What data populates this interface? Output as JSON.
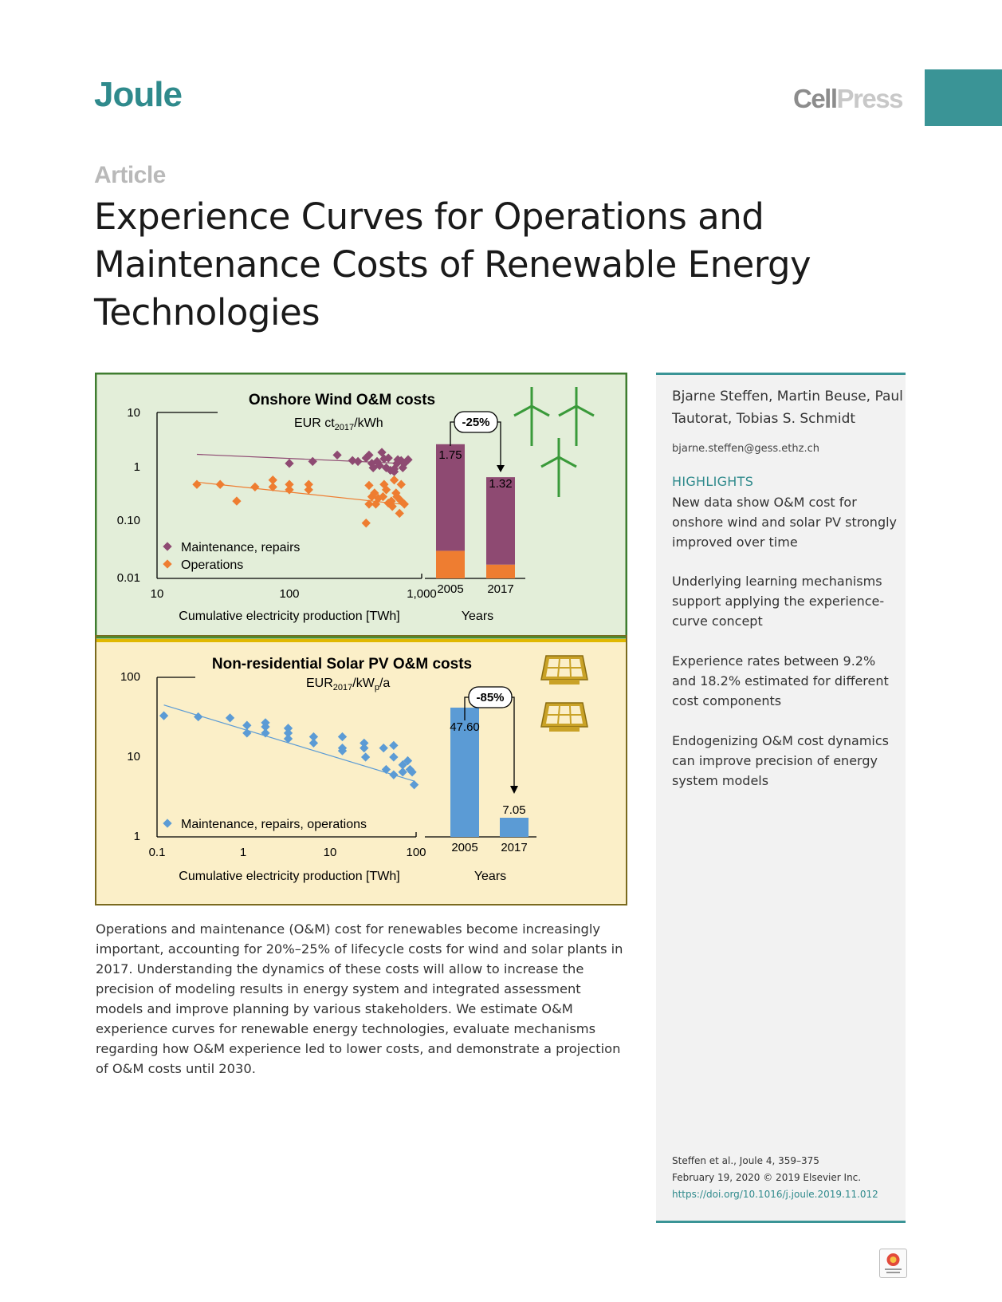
{
  "header": {
    "journal": "Joule",
    "publisher_part1": "Cell",
    "publisher_part2": "Press"
  },
  "article": {
    "type": "Article",
    "title": "Experience Curves for Operations and Maintenance Costs of Renewable Energy Technologies"
  },
  "sidebar": {
    "authors": "Bjarne Steffen, Martin Beuse, Paul Tautorat, Tobias S. Schmidt",
    "email": "bjarne.steffen@gess.ethz.ch",
    "highlights_heading": "HIGHLIGHTS",
    "highlights": [
      "New data show O&M cost for onshore wind and solar PV strongly improved over time",
      "Underlying learning mechanisms support applying the experience-curve concept",
      "Experience rates between 9.2% and 18.2% estimated for different cost components",
      "Endogenizing O&M cost dynamics can improve precision of energy system models"
    ],
    "citation_line1": "Steffen et al., Joule 4, 359–375",
    "citation_line2": "February 19, 2020 © 2019 Elsevier Inc.",
    "doi": "https://doi.org/10.1016/j.joule.2019.11.012"
  },
  "abstract": "Operations and maintenance (O&M) cost for renewables become increasingly important, accounting for 20%–25% of lifecycle costs for wind and solar plants in 2017. Understanding the dynamics of these costs will allow to increase the precision of modeling results in energy system and integrated assessment models and improve planning by various stakeholders. We estimate O&M experience curves for renewable energy technologies, evaluate mechanisms regarding how O&M experience led to lower costs, and demonstrate a projection of O&M costs until 2030.",
  "colors": {
    "accent": "#3a9496",
    "wind_panel_bg": "#e3eed9",
    "solar_panel_bg": "#fbefc8",
    "maintenance": "#8e4a72",
    "operations": "#ee7d31",
    "solar_series": "#5b9bd5",
    "solar_icon": "#c9a227",
    "wind_icon": "#3a9a3a"
  },
  "icons": {
    "wind": "wind-turbine-icon",
    "solar": "solar-panel-icon"
  },
  "chart_data": [
    {
      "type": "scatter",
      "title": "Onshore Wind O&M costs",
      "ylabel_main": "EUR ct",
      "ylabel_sub": "2017",
      "ylabel_tail": "/kWh",
      "xlabel": "Cumulative electricity production [TWh]",
      "x_scale": "log",
      "y_scale": "log",
      "xlim": [
        10,
        1000
      ],
      "ylim": [
        0.01,
        10
      ],
      "xticks": [
        "10",
        "100",
        "1,000"
      ],
      "yticks": [
        "10",
        "1",
        "0.10",
        "0.01"
      ],
      "legend_position": "bottom-left",
      "series": [
        {
          "name": "Maintenance, repairs",
          "color": "#8e4a72",
          "points": [
            [
              100,
              1.2
            ],
            [
              150,
              1.3
            ],
            [
              230,
              1.7
            ],
            [
              300,
              1.35
            ],
            [
              330,
              1.3
            ],
            [
              380,
              1.5
            ],
            [
              420,
              1.2
            ],
            [
              430,
              1.0
            ],
            [
              480,
              1.1
            ],
            [
              520,
              1.45
            ],
            [
              560,
              1.5
            ],
            [
              580,
              0.9
            ],
            [
              620,
              0.95
            ],
            [
              650,
              1.2
            ],
            [
              700,
              1.35
            ],
            [
              720,
              1.0
            ],
            [
              790,
              1.4
            ],
            [
              400,
              1.7
            ],
            [
              460,
              1.3
            ],
            [
              540,
              1.0
            ],
            [
              620,
              0.85
            ],
            [
              660,
              1.4
            ],
            [
              740,
              1.2
            ],
            [
              500,
              1.9
            ]
          ],
          "trend": [
            [
              20,
              1.75
            ],
            [
              700,
              1.2
            ]
          ]
        },
        {
          "name": "Operations",
          "color": "#ee7d31",
          "points": [
            [
              20,
              0.5
            ],
            [
              30,
              0.5
            ],
            [
              40,
              0.25
            ],
            [
              55,
              0.45
            ],
            [
              75,
              0.45
            ],
            [
              75,
              0.6
            ],
            [
              100,
              0.5
            ],
            [
              100,
              0.4
            ],
            [
              140,
              0.4
            ],
            [
              140,
              0.5
            ],
            [
              380,
              0.1
            ],
            [
              400,
              0.48
            ],
            [
              420,
              0.3
            ],
            [
              440,
              0.35
            ],
            [
              470,
              0.28
            ],
            [
              510,
              0.3
            ],
            [
              520,
              0.5
            ],
            [
              560,
              0.23
            ],
            [
              590,
              0.25
            ],
            [
              620,
              0.6
            ],
            [
              640,
              0.35
            ],
            [
              680,
              0.15
            ],
            [
              700,
              0.5
            ],
            [
              740,
              0.22
            ],
            [
              400,
              0.22
            ],
            [
              450,
              0.22
            ],
            [
              540,
              0.4
            ],
            [
              600,
              0.2
            ],
            [
              650,
              0.3
            ],
            [
              700,
              0.25
            ]
          ],
          "trend": [
            [
              20,
              0.55
            ],
            [
              700,
              0.22
            ]
          ]
        }
      ]
    },
    {
      "type": "bar",
      "title": "",
      "xlabel": "Years",
      "categories": [
        "2005",
        "2017"
      ],
      "totals": [
        1.75,
        1.32
      ],
      "ylim": [
        0,
        1.8
      ],
      "series": [
        {
          "name": "Maintenance, repairs",
          "color": "#8e4a72",
          "values": [
            1.39,
            1.14
          ]
        },
        {
          "name": "Operations",
          "color": "#ee7d31",
          "values": [
            0.36,
            0.18
          ]
        }
      ],
      "change_label": "-25%"
    },
    {
      "type": "scatter",
      "title": "Non-residential Solar PV O&M costs",
      "ylabel_main": "EUR",
      "ylabel_sub": "2017",
      "ylabel_tail": "/kW",
      "ylabel_sub2": "p",
      "ylabel_tail2": "/a",
      "xlabel": "Cumulative electricity production [TWh]",
      "x_scale": "log",
      "y_scale": "log",
      "xlim": [
        0.1,
        100
      ],
      "ylim": [
        1,
        100
      ],
      "xticks": [
        "0.1",
        "1",
        "10",
        "100"
      ],
      "yticks": [
        "100",
        "10",
        "1"
      ],
      "legend_position": "bottom-left",
      "series": [
        {
          "name": "Maintenance, repairs, operations",
          "color": "#5b9bd5",
          "points": [
            [
              0.12,
              33
            ],
            [
              0.3,
              32
            ],
            [
              0.7,
              31
            ],
            [
              1.1,
              25
            ],
            [
              1.1,
              20
            ],
            [
              1.8,
              27
            ],
            [
              1.8,
              24
            ],
            [
              1.8,
              20
            ],
            [
              3.3,
              23
            ],
            [
              3.3,
              20
            ],
            [
              3.3,
              17
            ],
            [
              6.5,
              18
            ],
            [
              6.5,
              15
            ],
            [
              14,
              18
            ],
            [
              14,
              13
            ],
            [
              14,
              12
            ],
            [
              25,
              15
            ],
            [
              25,
              13
            ],
            [
              26,
              10
            ],
            [
              42,
              13
            ],
            [
              45,
              7
            ],
            [
              55,
              14
            ],
            [
              55,
              10
            ],
            [
              55,
              6
            ],
            [
              70,
              8
            ],
            [
              70,
              6.5
            ],
            [
              85,
              7
            ],
            [
              90,
              6.5
            ],
            [
              95,
              4.5
            ],
            [
              80,
              9
            ]
          ],
          "trend": [
            [
              0.12,
              45
            ],
            [
              95,
              5
            ]
          ]
        }
      ]
    },
    {
      "type": "bar",
      "title": "",
      "xlabel": "Years",
      "categories": [
        "2005",
        "2017"
      ],
      "totals": [
        47.6,
        7.05
      ],
      "series": [
        {
          "name": "Maintenance, repairs, operations",
          "color": "#5b9bd5",
          "values": [
            47.6,
            7.05
          ]
        }
      ],
      "value_labels": [
        "47.60",
        "7.05"
      ],
      "ylim": [
        0,
        52
      ],
      "change_label": "-85%"
    }
  ]
}
